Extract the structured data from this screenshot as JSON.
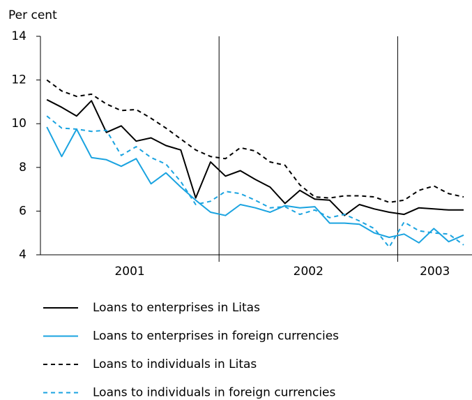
{
  "chart_data": {
    "type": "line",
    "y_label": "Per cent",
    "categories": [
      null,
      null,
      null,
      null,
      null,
      null,
      null,
      null,
      null,
      null,
      null,
      null,
      null,
      null,
      null,
      null,
      null,
      null,
      null,
      null,
      null,
      null,
      null,
      null,
      null,
      null,
      null,
      null,
      null
    ],
    "year_labels": [
      "2001",
      "2002",
      "2003"
    ],
    "ylim": [
      4,
      14
    ],
    "yticks": [
      4,
      6,
      8,
      10,
      12,
      14
    ],
    "series": [
      {
        "name": "Loans to enterprises in Litas",
        "color": "#000000",
        "dashed": false,
        "values": [
          11.1,
          10.75,
          10.35,
          11.05,
          9.6,
          9.9,
          9.2,
          9.35,
          9.0,
          8.8,
          6.6,
          8.25,
          7.6,
          7.85,
          7.45,
          7.1,
          6.35,
          6.95,
          6.55,
          6.5,
          5.8,
          6.3,
          6.1,
          5.95,
          5.85,
          6.15,
          6.1,
          6.05,
          6.05
        ]
      },
      {
        "name": "Loans to enterprises in foreign currencies",
        "color": "#1aa3e0",
        "dashed": false,
        "values": [
          9.85,
          8.5,
          9.75,
          8.45,
          8.35,
          8.05,
          8.4,
          7.25,
          7.75,
          7.1,
          6.5,
          5.95,
          5.8,
          6.3,
          6.15,
          5.95,
          6.25,
          6.15,
          6.2,
          5.45,
          5.45,
          5.4,
          5.0,
          4.8,
          4.95,
          4.55,
          5.2,
          4.6,
          4.9
        ]
      },
      {
        "name": "Loans to individuals in Litas",
        "color": "#000000",
        "dashed": true,
        "values": [
          12.0,
          11.5,
          11.25,
          11.35,
          10.9,
          10.6,
          10.65,
          10.25,
          9.8,
          9.3,
          8.8,
          8.5,
          8.4,
          8.9,
          8.75,
          8.25,
          8.1,
          7.2,
          6.65,
          6.6,
          6.7,
          6.7,
          6.65,
          6.4,
          6.5,
          6.95,
          7.15,
          6.8,
          6.65
        ]
      },
      {
        "name": "Loans to individuals in foreign currencies",
        "color": "#1aa3e0",
        "dashed": true,
        "values": [
          10.35,
          9.8,
          9.75,
          9.65,
          9.7,
          8.55,
          8.95,
          8.45,
          8.15,
          7.35,
          6.3,
          6.45,
          6.9,
          6.8,
          6.5,
          6.15,
          6.2,
          5.85,
          6.05,
          5.7,
          5.85,
          5.55,
          5.2,
          4.35,
          5.5,
          5.1,
          5.0,
          4.95,
          4.45
        ]
      }
    ]
  }
}
